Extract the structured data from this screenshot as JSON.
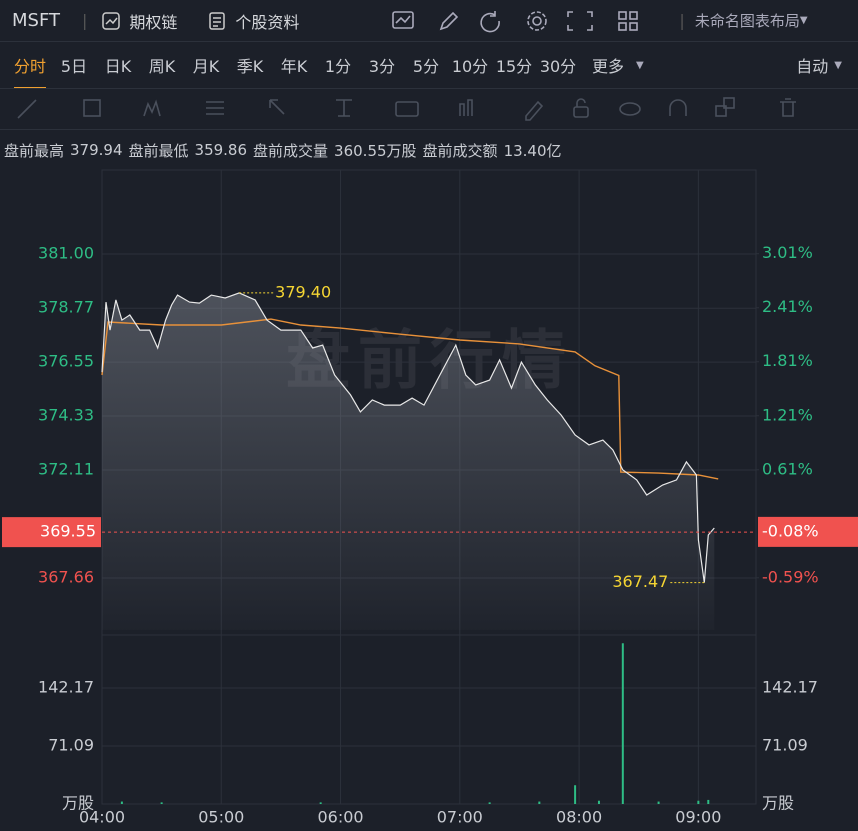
{
  "header": {
    "symbol": "MSFT",
    "links": [
      "期权链",
      "个股资料"
    ],
    "layout": "未命名图表布局"
  },
  "tabs": {
    "items": [
      "分时",
      "5日",
      "日K",
      "周K",
      "月K",
      "季K",
      "年K",
      "1分",
      "3分",
      "5分",
      "10分",
      "15分",
      "30分",
      "更多"
    ],
    "active": 0,
    "dropdown": "自动"
  },
  "stats": [
    {
      "label": "盘前最高",
      "value": "379.94"
    },
    {
      "label": "盘前最低",
      "value": "359.86"
    },
    {
      "label": "盘前成交量",
      "value": "360.55万股"
    },
    {
      "label": "盘前成交额",
      "value": "13.40亿"
    }
  ],
  "chart_data": {
    "type": "line",
    "watermark": "盘前行情",
    "xlim": [
      "04:00",
      "09:29"
    ],
    "xticks": [
      "04:00",
      "05:00",
      "06:00",
      "07:00",
      "08:00",
      "09:00"
    ],
    "ylim": [
      365.52,
      384.46
    ],
    "yticks": [
      {
        "value": 381,
        "label": "381.00"
      },
      {
        "value": 378.77,
        "label": "378.77"
      },
      {
        "value": 376.55,
        "label": "376.55"
      },
      {
        "value": 374.33,
        "label": "374.33"
      },
      {
        "value": 372.11,
        "label": "372.11"
      },
      {
        "value": 367.66,
        "label": "367.66"
      }
    ],
    "y2lim": [
      -1.17,
      3.94
    ],
    "y2ticks": [
      {
        "value": 3.01,
        "label": "3.01%"
      },
      {
        "value": 2.41,
        "label": "2.41%"
      },
      {
        "value": 1.81,
        "label": "1.81%"
      },
      {
        "value": 1.21,
        "label": "1.21%"
      },
      {
        "value": 0.61,
        "label": "0.61%"
      },
      {
        "value": -0.59,
        "label": "-0.59%"
      }
    ],
    "up_color": "#2ebd85",
    "down_color": "#f0524f",
    "grid": true,
    "price": {
      "color": "#e8e8e8",
      "x": [
        "04:00",
        "04:02",
        "04:04",
        "04:07",
        "04:10",
        "04:14",
        "04:19",
        "04:24",
        "04:28",
        "04:32",
        "04:35",
        "04:38",
        "04:44",
        "04:49",
        "04:55",
        "05:02",
        "05:09",
        "05:17",
        "05:23",
        "05:30",
        "05:40",
        "05:46",
        "05:51",
        "05:57",
        "06:05",
        "06:10",
        "06:16",
        "06:22",
        "06:30",
        "06:36",
        "06:42",
        "06:50",
        "06:58",
        "07:03",
        "07:08",
        "07:15",
        "07:20",
        "07:26",
        "07:31",
        "07:38",
        "07:44",
        "07:51",
        "07:58",
        "08:05",
        "08:12",
        "08:17",
        "08:22",
        "08:29",
        "08:34",
        "08:42",
        "08:49",
        "08:54",
        "08:59",
        "09:00",
        "09:03",
        "09:05",
        "09:08"
      ],
      "values": [
        376.14,
        379.02,
        377.87,
        379.11,
        378.28,
        378.49,
        377.87,
        377.87,
        377.13,
        378.28,
        378.9,
        379.31,
        379.02,
        378.98,
        379.31,
        379.19,
        379.4,
        379.11,
        378.28,
        377.87,
        377.87,
        377.13,
        377.25,
        376.02,
        375.2,
        374.5,
        374.99,
        374.78,
        374.78,
        375.07,
        374.78,
        376.02,
        377.25,
        376.02,
        375.61,
        375.81,
        376.64,
        375.48,
        376.55,
        375.61,
        374.99,
        374.37,
        373.55,
        373.14,
        373.34,
        372.93,
        372.11,
        371.7,
        371.08,
        371.49,
        371.7,
        372.44,
        371.9,
        369.23,
        367.47,
        369.43,
        369.72
      ]
    },
    "average": {
      "color": "#e8913a",
      "x": [
        "04:00",
        "04:03",
        "04:30",
        "05:00",
        "05:25",
        "05:40",
        "06:00",
        "06:30",
        "07:00",
        "07:30",
        "07:58",
        "08:08",
        "08:20",
        "08:21",
        "08:40",
        "09:00",
        "09:10"
      ],
      "values": [
        376.02,
        378.2,
        378.08,
        378.08,
        378.32,
        378.08,
        377.95,
        377.7,
        377.46,
        377.3,
        376.97,
        376.4,
        376.0,
        372.02,
        371.98,
        371.9,
        371.74
      ]
    },
    "high": {
      "x": "05:09",
      "value": 379.4,
      "label": "379.40"
    },
    "low": {
      "x": "09:03",
      "value": 367.47,
      "label": "367.47"
    },
    "current": {
      "value": 369.55,
      "label": "369.55",
      "pct": -0.08,
      "pct_label": "-0.08%"
    },
    "volume": {
      "color": "#2ebd85",
      "unit": "万股",
      "ylim": [
        0,
        201
      ],
      "yticks": [
        71.09,
        142.17
      ],
      "x": [
        "04:10",
        "04:30",
        "05:50",
        "07:15",
        "07:40",
        "07:58",
        "08:10",
        "08:22",
        "08:40",
        "09:00",
        "09:05"
      ],
      "values": [
        3,
        2,
        2,
        2,
        3,
        23,
        4,
        197,
        3,
        4,
        5
      ]
    }
  }
}
